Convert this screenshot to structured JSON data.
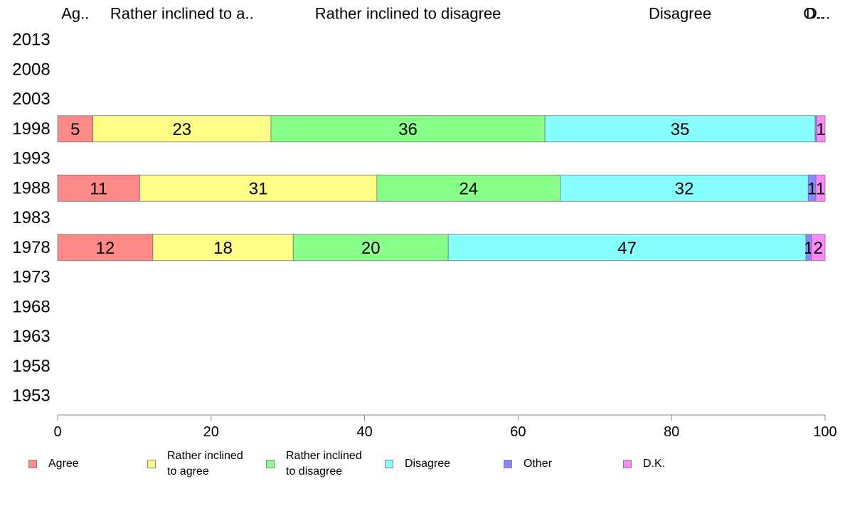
{
  "chart_data": {
    "type": "bar",
    "orientation": "horizontal",
    "stacked": true,
    "years": [
      "2013",
      "2008",
      "2003",
      "1998",
      "1993",
      "1988",
      "1983",
      "1978",
      "1973",
      "1968",
      "1963",
      "1958",
      "1953"
    ],
    "categories": [
      "Agree",
      "Rather inclined to agree",
      "Rather inclined to disagree",
      "Disagree",
      "Other",
      "D.K."
    ],
    "colors": [
      "#ff8888",
      "#ffff88",
      "#88ff88",
      "#88ffff",
      "#8888ff",
      "#ff88ff"
    ],
    "top_labels": [
      "Ag..",
      "Rather inclined to a..",
      "Rather inclined to disagree",
      "Disagree",
      "O..",
      "D..."
    ],
    "rows": [
      {
        "year": "1998",
        "values": [
          4.6,
          23.2,
          35.7,
          35.2,
          0.2,
          1.1
        ],
        "labels": [
          "5",
          "23",
          "36",
          "35",
          "",
          "1"
        ]
      },
      {
        "year": "1988",
        "values": [
          10.7,
          30.9,
          23.9,
          32.3,
          1.0,
          1.2
        ],
        "labels": [
          "11",
          "31",
          "24",
          "32",
          "1",
          "1"
        ]
      },
      {
        "year": "1978",
        "values": [
          12.4,
          18.3,
          20.2,
          46.6,
          0.7,
          1.8
        ],
        "labels": [
          "12",
          "18",
          "20",
          "47",
          "1",
          "2"
        ]
      }
    ],
    "x_ticks": [
      0,
      20,
      40,
      60,
      80,
      100
    ],
    "xlim": [
      0,
      100
    ],
    "legend": [
      {
        "label": "Agree"
      },
      {
        "label": "Rather inclined\nto agree"
      },
      {
        "label": "Rather inclined\nto disagree"
      },
      {
        "label": "Disagree"
      },
      {
        "label": "Other"
      },
      {
        "label": "D.K."
      }
    ],
    "legend_position": "bottom"
  }
}
